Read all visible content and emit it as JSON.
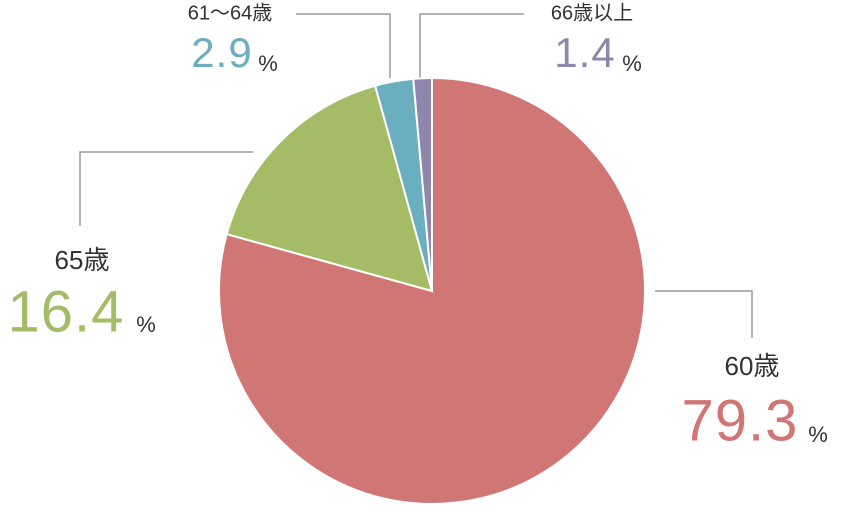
{
  "chart_data": {
    "type": "pie",
    "categories": [
      "60歳",
      "65歳",
      "61〜64歳",
      "66歳以上"
    ],
    "values": [
      79.3,
      16.4,
      2.9,
      1.4
    ],
    "colors": [
      "#d07674",
      "#a5bc66",
      "#6aafbf",
      "#8e87ab"
    ],
    "unit": "%"
  }
}
